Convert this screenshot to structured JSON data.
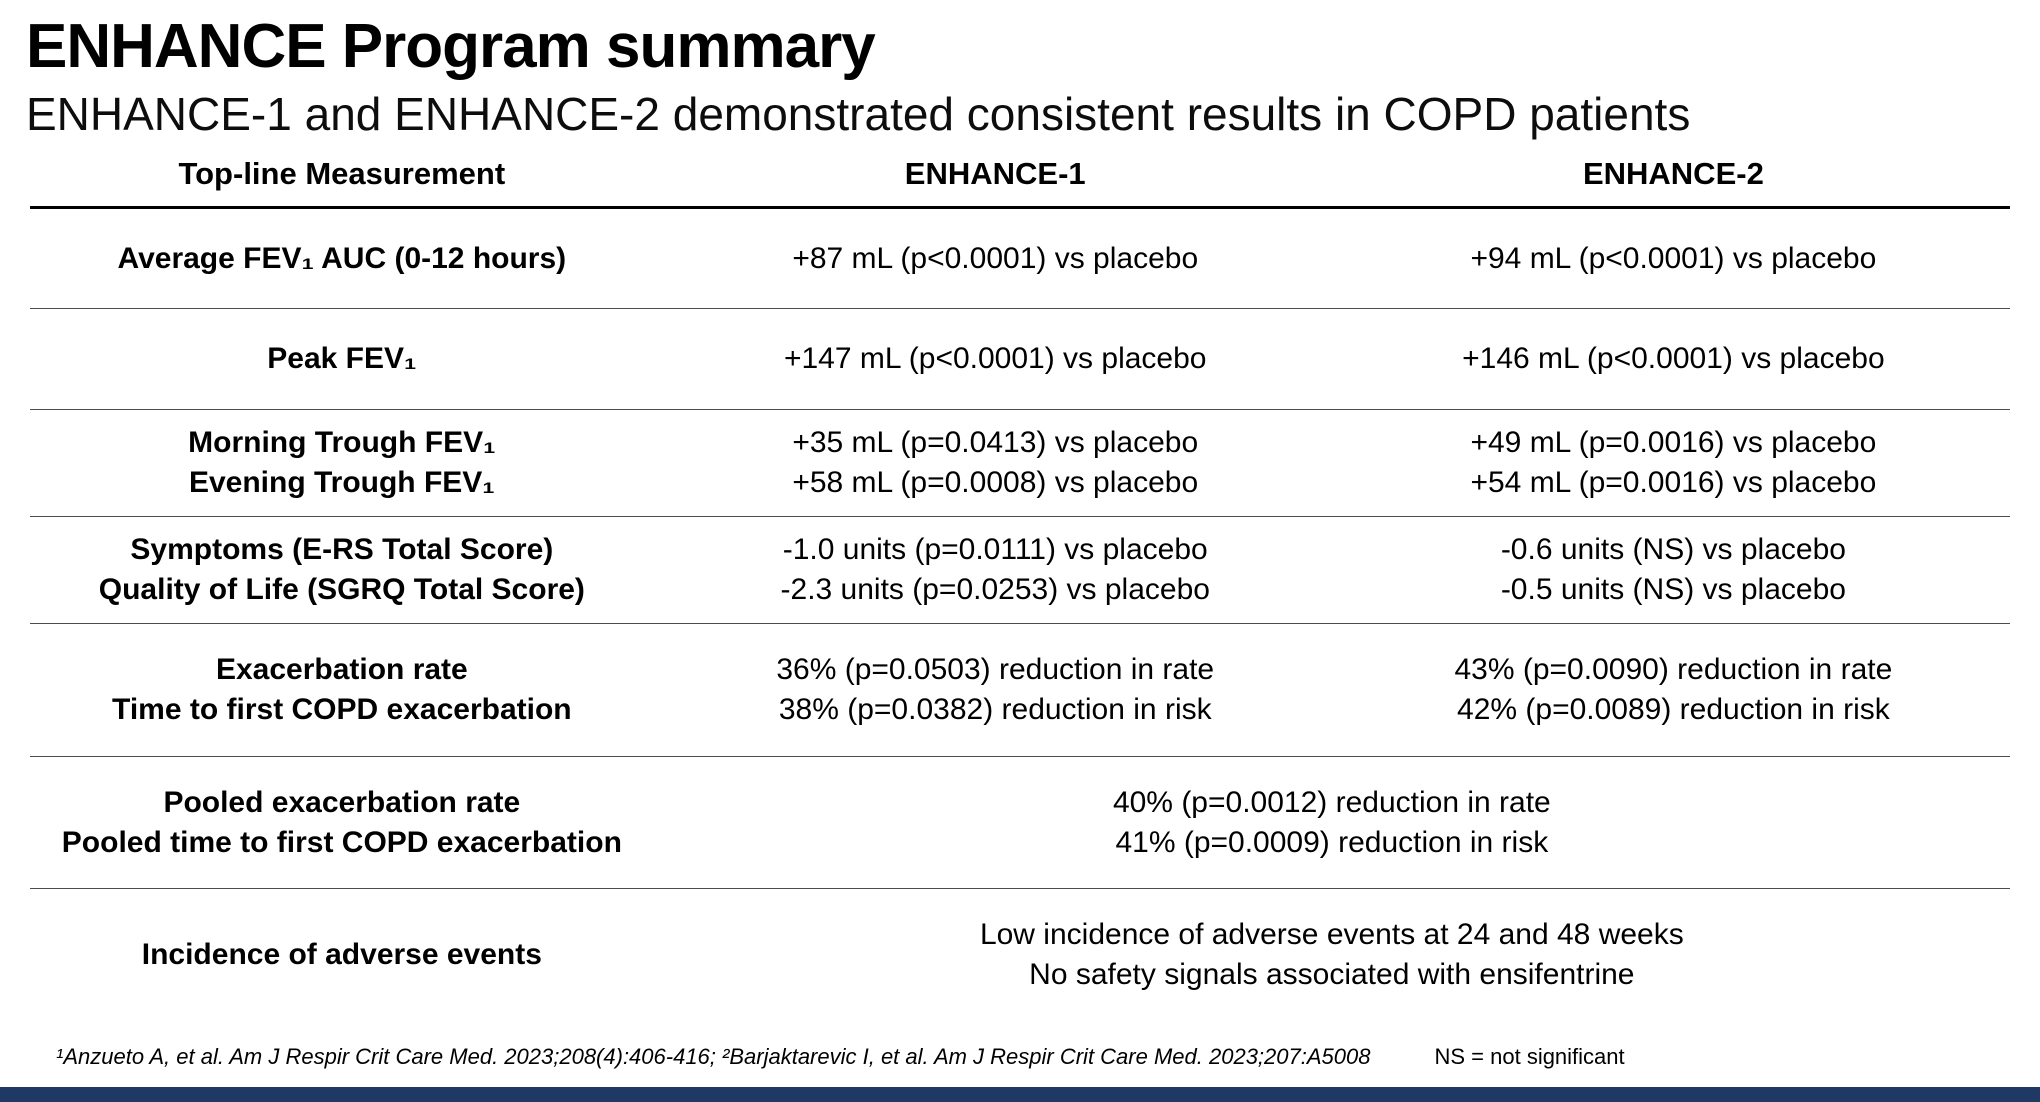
{
  "title": "ENHANCE Program summary",
  "subtitle": "ENHANCE-1 and ENHANCE-2 demonstrated consistent results in COPD patients",
  "table": {
    "headers": [
      "Top-line Measurement",
      "ENHANCE-1",
      "ENHANCE-2"
    ],
    "rows": [
      {
        "measurement": [
          "Average FEV₁ AUC (0-12 hours)"
        ],
        "enhance1": [
          "+87 mL (p<0.0001) vs placebo"
        ],
        "enhance2": [
          "+94 mL (p<0.0001) vs placebo"
        ]
      },
      {
        "measurement": [
          "Peak FEV₁"
        ],
        "enhance1": [
          "+147 mL (p<0.0001) vs placebo"
        ],
        "enhance2": [
          "+146 mL (p<0.0001) vs placebo"
        ]
      },
      {
        "measurement": [
          "Morning Trough FEV₁",
          "Evening Trough FEV₁"
        ],
        "enhance1": [
          "+35 mL (p=0.0413) vs placebo",
          "+58 mL (p=0.0008) vs placebo"
        ],
        "enhance2": [
          "+49 mL (p=0.0016) vs placebo",
          "+54 mL (p=0.0016) vs placebo"
        ]
      },
      {
        "measurement": [
          "Symptoms (E-RS Total Score)",
          "Quality of Life (SGRQ Total Score)"
        ],
        "enhance1": [
          "-1.0 units (p=0.0111) vs placebo",
          "-2.3 units (p=0.0253) vs placebo"
        ],
        "enhance2": [
          "-0.6 units (NS) vs placebo",
          "-0.5 units (NS) vs placebo"
        ]
      },
      {
        "measurement": [
          "Exacerbation rate",
          "Time to first COPD exacerbation"
        ],
        "enhance1": [
          "36% (p=0.0503) reduction in rate",
          "38% (p=0.0382) reduction in risk"
        ],
        "enhance2": [
          "43% (p=0.0090) reduction in rate",
          "42% (p=0.0089) reduction in risk"
        ]
      },
      {
        "measurement": [
          "Pooled exacerbation rate",
          "Pooled time to first COPD exacerbation"
        ],
        "pooled": [
          "40% (p=0.0012) reduction in rate",
          "41% (p=0.0009) reduction in risk"
        ]
      },
      {
        "measurement": [
          "Incidence of adverse events"
        ],
        "pooled": [
          "Low incidence of adverse events at 24 and 48 weeks",
          "No safety signals associated with ensifentrine"
        ]
      }
    ]
  },
  "footer": {
    "references": "¹Anzueto A, et al. Am J  Respir Crit Care Med. 2023;208(4):406-416; ²Barjaktarevic I, et al. Am J Respir Crit Care Med. 2023;207:A5008",
    "ns_note": "NS = not significant"
  },
  "colors": {
    "bottom_bar": "#1f3864"
  }
}
